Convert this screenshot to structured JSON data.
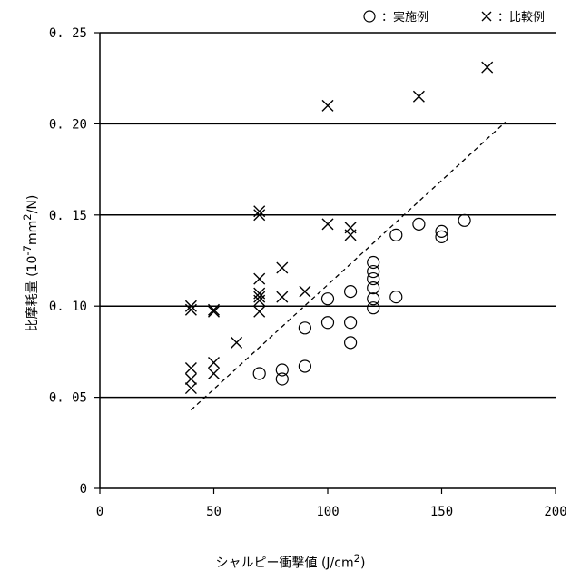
{
  "chart_data": {
    "type": "scatter",
    "xlabel_main": "シャルピー衝撃値",
    "xlabel_unit_prefix": " (J/cm",
    "xlabel_unit_sup": "2",
    "xlabel_unit_suffix": ")",
    "ylabel_main": "比摩耗量",
    "ylabel_unit_prefix": " (10",
    "ylabel_unit_sup1": "-7",
    "ylabel_unit_mid": "mm",
    "ylabel_unit_sup2": "2",
    "ylabel_unit_suffix": "/N)",
    "xlim": [
      0,
      200
    ],
    "ylim": [
      0,
      0.25
    ],
    "x_ticks": [
      {
        "value": 0,
        "label": "0"
      },
      {
        "value": 50,
        "label": "50"
      },
      {
        "value": 100,
        "label": "100"
      },
      {
        "value": 150,
        "label": "150"
      },
      {
        "value": 200,
        "label": "200"
      }
    ],
    "y_ticks": [
      {
        "value": 0,
        "label": "0"
      },
      {
        "value": 0.05,
        "label": "0. 05"
      },
      {
        "value": 0.1,
        "label": "0. 10"
      },
      {
        "value": 0.15,
        "label": "0. 15"
      },
      {
        "value": 0.2,
        "label": "0. 20"
      },
      {
        "value": 0.25,
        "label": "0. 25"
      }
    ],
    "horizontal_grid": true,
    "legend_position": "top-right",
    "series": [
      {
        "name": "：実施例",
        "marker": "circle",
        "points": [
          [
            70,
            0.063
          ],
          [
            80,
            0.065
          ],
          [
            80,
            0.06
          ],
          [
            90,
            0.067
          ],
          [
            90,
            0.088
          ],
          [
            100,
            0.091
          ],
          [
            100,
            0.104
          ],
          [
            110,
            0.08
          ],
          [
            110,
            0.091
          ],
          [
            110,
            0.108
          ],
          [
            120,
            0.099
          ],
          [
            120,
            0.104
          ],
          [
            120,
            0.11
          ],
          [
            120,
            0.115
          ],
          [
            120,
            0.119
          ],
          [
            120,
            0.124
          ],
          [
            130,
            0.105
          ],
          [
            130,
            0.139
          ],
          [
            140,
            0.145
          ],
          [
            150,
            0.138
          ],
          [
            150,
            0.141
          ],
          [
            160,
            0.147
          ]
        ]
      },
      {
        "name": "：比較例",
        "marker": "cross",
        "points": [
          [
            40,
            0.055
          ],
          [
            40,
            0.06
          ],
          [
            40,
            0.066
          ],
          [
            40,
            0.098
          ],
          [
            40,
            0.1
          ],
          [
            50,
            0.063
          ],
          [
            50,
            0.069
          ],
          [
            50,
            0.097
          ],
          [
            50,
            0.098
          ],
          [
            60,
            0.08
          ],
          [
            70,
            0.097
          ],
          [
            70,
            0.103
          ],
          [
            70,
            0.105
          ],
          [
            70,
            0.107
          ],
          [
            70,
            0.115
          ],
          [
            70,
            0.15
          ],
          [
            70,
            0.152
          ],
          [
            80,
            0.105
          ],
          [
            80,
            0.121
          ],
          [
            90,
            0.108
          ],
          [
            100,
            0.145
          ],
          [
            100,
            0.21
          ],
          [
            110,
            0.139
          ],
          [
            110,
            0.143
          ],
          [
            140,
            0.215
          ],
          [
            170,
            0.231
          ]
        ]
      }
    ],
    "trend_line": {
      "style": "dashed",
      "from": [
        40,
        0.043
      ],
      "to": [
        178,
        0.201
      ]
    }
  }
}
